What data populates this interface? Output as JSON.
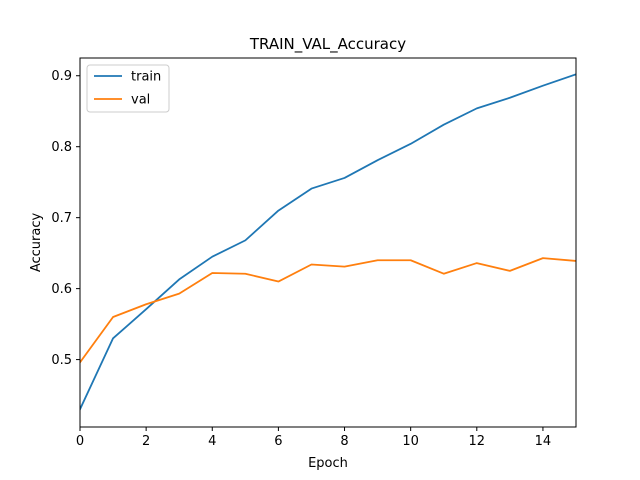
{
  "chart_data": {
    "type": "line",
    "title": "TRAIN_VAL_Accuracy",
    "xlabel": "Epoch",
    "ylabel": "Accuracy",
    "xlim": [
      0,
      15
    ],
    "ylim": [
      0.405,
      0.925
    ],
    "xticks": [
      0,
      2,
      4,
      6,
      8,
      10,
      12,
      14
    ],
    "yticks": [
      0.5,
      0.6,
      0.7,
      0.8,
      0.9
    ],
    "grid": false,
    "legend_position": "top-left",
    "x": [
      0,
      1,
      2,
      3,
      4,
      5,
      6,
      7,
      8,
      9,
      10,
      11,
      12,
      13,
      14,
      15
    ],
    "series": [
      {
        "name": "train",
        "color": "#1f77b4",
        "values": [
          0.43,
          0.53,
          0.571,
          0.613,
          0.645,
          0.668,
          0.71,
          0.741,
          0.756,
          0.781,
          0.804,
          0.831,
          0.854,
          0.869,
          0.886,
          0.902
        ]
      },
      {
        "name": "val",
        "color": "#ff7f0e",
        "values": [
          0.496,
          0.56,
          0.578,
          0.593,
          0.622,
          0.621,
          0.61,
          0.634,
          0.631,
          0.64,
          0.64,
          0.621,
          0.636,
          0.625,
          0.643,
          0.639
        ]
      }
    ]
  }
}
